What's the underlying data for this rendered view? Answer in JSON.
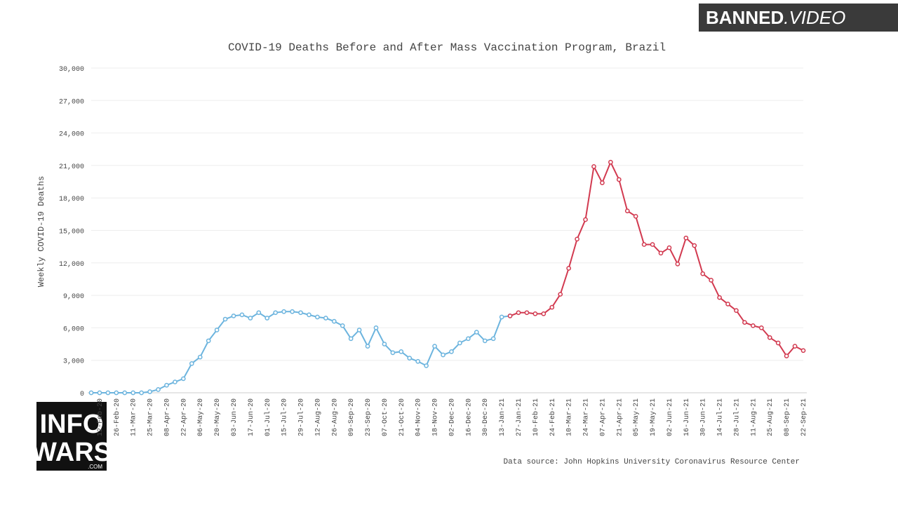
{
  "chart_data": {
    "type": "line",
    "title": "COVID-19 Deaths Before and After Mass Vaccination Program, Brazil",
    "y_label": "Weekly COVID-19 Deaths",
    "source": "Data source: John Hopkins University Coronavirus Resource Center",
    "categories": [
      null,
      "12-Feb-20",
      null,
      "26-Feb-20",
      null,
      "11-Mar-20",
      null,
      "25-Mar-20",
      null,
      "08-Apr-20",
      null,
      "22-Apr-20",
      null,
      "06-May-20",
      null,
      "20-May-20",
      null,
      "03-Jun-20",
      null,
      "17-Jun-20",
      null,
      "01-Jul-20",
      null,
      "15-Jul-20",
      null,
      "29-Jul-20",
      null,
      "12-Aug-20",
      null,
      "26-Aug-20",
      null,
      "09-Sep-20",
      null,
      "23-Sep-20",
      null,
      "07-Oct-20",
      null,
      "21-Oct-20",
      null,
      "04-Nov-20",
      null,
      "18-Nov-20",
      null,
      "02-Dec-20",
      null,
      "16-Dec-20",
      null,
      "30-Dec-20",
      null,
      "13-Jan-21",
      null,
      "27-Jan-21",
      null,
      "10-Feb-21",
      null,
      "24-Feb-21",
      null,
      "10-Mar-21",
      null,
      "24-Mar-21",
      null,
      "07-Apr-21",
      null,
      "21-Apr-21",
      null,
      "05-May-21",
      null,
      "19-May-21",
      null,
      "02-Jun-21",
      null,
      "16-Jun-21",
      null,
      "30-Jun-21",
      null,
      "14-Jul-21",
      null,
      "28-Jul-21",
      null,
      "11-Aug-21",
      null,
      "25-Aug-21",
      null,
      "08-Sep-21",
      null,
      "22-Sep-21"
    ],
    "series": [
      {
        "color": "#6cb4de",
        "values": [
          0,
          0,
          0,
          0,
          0,
          0,
          0,
          100,
          300,
          700,
          1000,
          1300,
          2700,
          3300,
          4800,
          5800,
          6800,
          7100,
          7200,
          6900,
          7400,
          6900,
          7400,
          7500,
          7500,
          7400,
          7200,
          7000,
          6900,
          6600,
          6200,
          5000,
          5800,
          4300,
          6000,
          4500,
          3700,
          3800,
          3200,
          2900,
          2500,
          4300,
          3500,
          3800,
          4600,
          5000,
          5600,
          4800,
          5000,
          7000,
          7100,
          null,
          null,
          null,
          null,
          null,
          null,
          null,
          null,
          null,
          null,
          null,
          null,
          null,
          null,
          null,
          null,
          null,
          null,
          null,
          null,
          null,
          null,
          null,
          null,
          null,
          null,
          null,
          null,
          null,
          null,
          null,
          null,
          null,
          null,
          null
        ]
      },
      {
        "color": "#d23a50",
        "values": [
          null,
          null,
          null,
          null,
          null,
          null,
          null,
          null,
          null,
          null,
          null,
          null,
          null,
          null,
          null,
          null,
          null,
          null,
          null,
          null,
          null,
          null,
          null,
          null,
          null,
          null,
          null,
          null,
          null,
          null,
          null,
          null,
          null,
          null,
          null,
          null,
          null,
          null,
          null,
          null,
          null,
          null,
          null,
          null,
          null,
          null,
          null,
          null,
          null,
          null,
          7100,
          7400,
          7400,
          7300,
          7300,
          7900,
          9100,
          11500,
          14200,
          16000,
          20900,
          19400,
          21300,
          19700,
          16800,
          16300,
          13700,
          13700,
          12900,
          13400,
          11900,
          14300,
          13600,
          11000,
          10400,
          8800,
          8200,
          7600,
          6500,
          6200,
          6000,
          5100,
          4600,
          3400,
          4300,
          3900
        ]
      }
    ],
    "ylim": [
      0,
      30000
    ],
    "yticks": [
      0,
      {
        "value": 3000,
        "label": "3,000"
      },
      {
        "value": 6000,
        "label": "6,000"
      },
      {
        "value": 9000,
        "label": "9,000"
      },
      {
        "value": 12000,
        "label": "12,000"
      },
      {
        "value": 15000,
        "label": "15,000"
      },
      {
        "value": 18000,
        "label": "18,000"
      },
      {
        "value": 21000,
        "label": "21,000"
      },
      {
        "value": 24000,
        "label": "24,000"
      },
      {
        "value": 27000,
        "label": "27,000"
      },
      {
        "value": 30000,
        "label": "30,000"
      }
    ],
    "grid": true
  },
  "watermarks": {
    "banned": "BANNED",
    "banned_suffix": ".VIDEO",
    "infowars_1": "INFO",
    "infowars_2": "WARS",
    "infowars_com": ".COM"
  }
}
